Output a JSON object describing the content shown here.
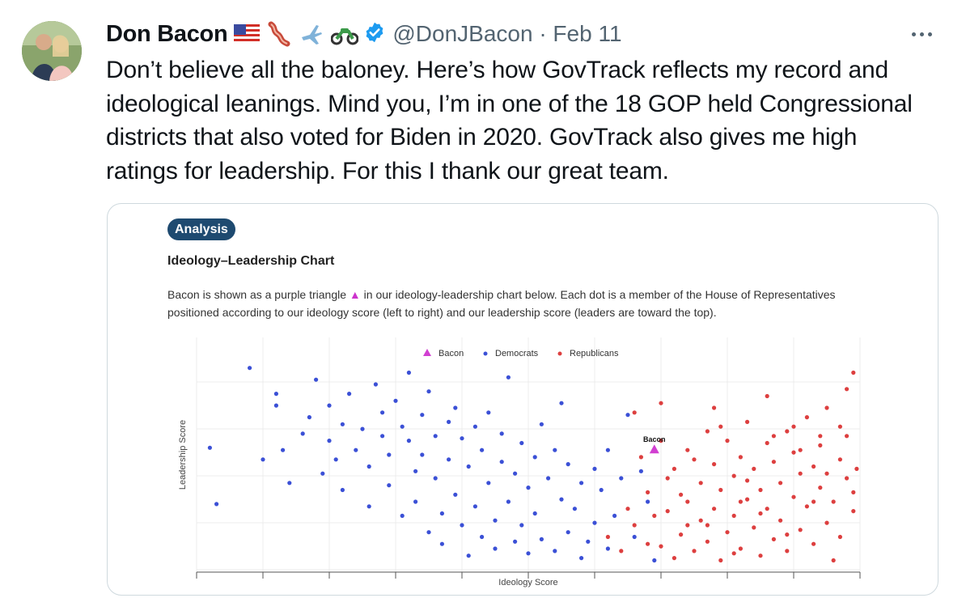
{
  "tweet": {
    "display_name": "Don Bacon",
    "name_emojis": [
      "flag-usa-icon",
      "bacon-icon",
      "airplane-icon",
      "motorcycle-icon"
    ],
    "verified": "verified-badge-icon",
    "handle_date": "@DonJBacon · Feb 11",
    "text": "Don’t believe all the baloney. Here’s how GovTrack reflects my record and\nideological leanings. Mind you, I’m in one of the 18 GOP held Congressional\ndistricts that also voted for Biden in 2020. GovTrack also gives me high\nratings for leadership. For this I thank our great team."
  },
  "card": {
    "badge": "Analysis",
    "title": "Ideology–Leadership Chart",
    "desc_before": "Bacon is shown as a purple triangle ",
    "desc_triangle": "▲",
    "desc_after": " in our ideology-leadership chart below. Each dot is a member of the House of Representatives positioned according to our ideology score (left to right) and our leadership score (leaders are toward the top)."
  },
  "colors": {
    "democrats": "#3b50d6",
    "republicans": "#dd3f3f",
    "bacon": "#d13fd1",
    "accent": "#1d9bf0"
  },
  "chart_data": {
    "type": "scatter",
    "xlabel": "Ideology Score",
    "ylabel": "Leadership Score",
    "xlim": [
      0,
      1
    ],
    "ylim": [
      0,
      1
    ],
    "grid": true,
    "legend": "top-center",
    "legend_labels": {
      "bacon": "Bacon",
      "democrats": "Democrats",
      "republicans": "Republicans"
    },
    "annotation": "Bacon",
    "bacon": {
      "x": 0.69,
      "y": 0.52
    },
    "series": [
      {
        "name": "Democrats",
        "points": [
          [
            0.02,
            0.53
          ],
          [
            0.03,
            0.29
          ],
          [
            0.08,
            0.87
          ],
          [
            0.1,
            0.48
          ],
          [
            0.12,
            0.76
          ],
          [
            0.12,
            0.71
          ],
          [
            0.13,
            0.52
          ],
          [
            0.14,
            0.38
          ],
          [
            0.16,
            0.59
          ],
          [
            0.17,
            0.66
          ],
          [
            0.18,
            0.82
          ],
          [
            0.19,
            0.42
          ],
          [
            0.2,
            0.56
          ],
          [
            0.2,
            0.71
          ],
          [
            0.21,
            0.48
          ],
          [
            0.22,
            0.63
          ],
          [
            0.22,
            0.35
          ],
          [
            0.23,
            0.76
          ],
          [
            0.24,
            0.52
          ],
          [
            0.25,
            0.61
          ],
          [
            0.26,
            0.28
          ],
          [
            0.26,
            0.45
          ],
          [
            0.27,
            0.8
          ],
          [
            0.28,
            0.58
          ],
          [
            0.28,
            0.68
          ],
          [
            0.29,
            0.5
          ],
          [
            0.29,
            0.37
          ],
          [
            0.3,
            0.73
          ],
          [
            0.31,
            0.62
          ],
          [
            0.31,
            0.24
          ],
          [
            0.32,
            0.56
          ],
          [
            0.32,
            0.85
          ],
          [
            0.33,
            0.43
          ],
          [
            0.33,
            0.3
          ],
          [
            0.34,
            0.67
          ],
          [
            0.34,
            0.5
          ],
          [
            0.35,
            0.17
          ],
          [
            0.35,
            0.77
          ],
          [
            0.36,
            0.58
          ],
          [
            0.36,
            0.4
          ],
          [
            0.37,
            0.25
          ],
          [
            0.37,
            0.12
          ],
          [
            0.38,
            0.64
          ],
          [
            0.38,
            0.48
          ],
          [
            0.39,
            0.33
          ],
          [
            0.39,
            0.7
          ],
          [
            0.4,
            0.2
          ],
          [
            0.4,
            0.57
          ],
          [
            0.41,
            0.45
          ],
          [
            0.41,
            0.07
          ],
          [
            0.42,
            0.62
          ],
          [
            0.42,
            0.28
          ],
          [
            0.43,
            0.15
          ],
          [
            0.43,
            0.52
          ],
          [
            0.44,
            0.38
          ],
          [
            0.44,
            0.68
          ],
          [
            0.45,
            0.22
          ],
          [
            0.45,
            0.1
          ],
          [
            0.46,
            0.47
          ],
          [
            0.46,
            0.59
          ],
          [
            0.47,
            0.3
          ],
          [
            0.47,
            0.83
          ],
          [
            0.48,
            0.13
          ],
          [
            0.48,
            0.42
          ],
          [
            0.49,
            0.55
          ],
          [
            0.49,
            0.2
          ],
          [
            0.5,
            0.08
          ],
          [
            0.5,
            0.36
          ],
          [
            0.51,
            0.49
          ],
          [
            0.51,
            0.25
          ],
          [
            0.52,
            0.63
          ],
          [
            0.52,
            0.14
          ],
          [
            0.53,
            0.4
          ],
          [
            0.54,
            0.52
          ],
          [
            0.54,
            0.09
          ],
          [
            0.55,
            0.31
          ],
          [
            0.55,
            0.72
          ],
          [
            0.56,
            0.46
          ],
          [
            0.56,
            0.17
          ],
          [
            0.57,
            0.27
          ],
          [
            0.58,
            0.38
          ],
          [
            0.58,
            0.06
          ],
          [
            0.59,
            0.13
          ],
          [
            0.6,
            0.44
          ],
          [
            0.6,
            0.21
          ],
          [
            0.61,
            0.35
          ],
          [
            0.62,
            0.52
          ],
          [
            0.62,
            0.1
          ],
          [
            0.63,
            0.24
          ],
          [
            0.64,
            0.4
          ],
          [
            0.65,
            0.67
          ],
          [
            0.66,
            0.15
          ],
          [
            0.67,
            0.43
          ],
          [
            0.68,
            0.3
          ],
          [
            0.69,
            0.05
          ]
        ]
      },
      {
        "name": "Republicans",
        "points": [
          [
            0.66,
            0.2
          ],
          [
            0.68,
            0.34
          ],
          [
            0.7,
            0.11
          ],
          [
            0.71,
            0.26
          ],
          [
            0.72,
            0.44
          ],
          [
            0.72,
            0.06
          ],
          [
            0.73,
            0.16
          ],
          [
            0.74,
            0.3
          ],
          [
            0.74,
            0.52
          ],
          [
            0.75,
            0.09
          ],
          [
            0.76,
            0.22
          ],
          [
            0.76,
            0.38
          ],
          [
            0.77,
            0.6
          ],
          [
            0.77,
            0.13
          ],
          [
            0.78,
            0.46
          ],
          [
            0.78,
            0.27
          ],
          [
            0.79,
            0.05
          ],
          [
            0.79,
            0.35
          ],
          [
            0.8,
            0.17
          ],
          [
            0.8,
            0.56
          ],
          [
            0.81,
            0.41
          ],
          [
            0.81,
            0.24
          ],
          [
            0.82,
            0.1
          ],
          [
            0.82,
            0.49
          ],
          [
            0.83,
            0.31
          ],
          [
            0.83,
            0.64
          ],
          [
            0.84,
            0.19
          ],
          [
            0.84,
            0.44
          ],
          [
            0.85,
            0.07
          ],
          [
            0.85,
            0.35
          ],
          [
            0.86,
            0.27
          ],
          [
            0.86,
            0.55
          ],
          [
            0.87,
            0.14
          ],
          [
            0.87,
            0.47
          ],
          [
            0.88,
            0.38
          ],
          [
            0.88,
            0.22
          ],
          [
            0.89,
            0.6
          ],
          [
            0.89,
            0.09
          ],
          [
            0.9,
            0.32
          ],
          [
            0.9,
            0.51
          ],
          [
            0.91,
            0.18
          ],
          [
            0.91,
            0.42
          ],
          [
            0.92,
            0.28
          ],
          [
            0.92,
            0.66
          ],
          [
            0.93,
            0.12
          ],
          [
            0.93,
            0.45
          ],
          [
            0.94,
            0.36
          ],
          [
            0.94,
            0.54
          ],
          [
            0.95,
            0.21
          ],
          [
            0.95,
            0.7
          ],
          [
            0.96,
            0.3
          ],
          [
            0.96,
            0.05
          ],
          [
            0.97,
            0.48
          ],
          [
            0.97,
            0.15
          ],
          [
            0.98,
            0.4
          ],
          [
            0.98,
            0.58
          ],
          [
            0.99,
            0.26
          ],
          [
            0.99,
            0.85
          ],
          [
            0.995,
            0.44
          ],
          [
            0.62,
            0.15
          ],
          [
            0.64,
            0.09
          ],
          [
            0.65,
            0.27
          ],
          [
            0.67,
            0.49
          ],
          [
            0.68,
            0.12
          ],
          [
            0.69,
            0.24
          ],
          [
            0.7,
            0.56
          ],
          [
            0.71,
            0.4
          ],
          [
            0.73,
            0.33
          ],
          [
            0.75,
            0.48
          ],
          [
            0.77,
            0.2
          ],
          [
            0.79,
            0.62
          ],
          [
            0.81,
            0.08
          ],
          [
            0.83,
            0.39
          ],
          [
            0.85,
            0.25
          ],
          [
            0.87,
            0.58
          ],
          [
            0.89,
            0.16
          ],
          [
            0.91,
            0.52
          ],
          [
            0.93,
            0.3
          ],
          [
            0.95,
            0.42
          ],
          [
            0.97,
            0.62
          ],
          [
            0.99,
            0.34
          ],
          [
            0.66,
            0.68
          ],
          [
            0.7,
            0.72
          ],
          [
            0.74,
            0.2
          ],
          [
            0.78,
            0.7
          ],
          [
            0.82,
            0.3
          ],
          [
            0.86,
            0.75
          ],
          [
            0.9,
            0.62
          ],
          [
            0.94,
            0.58
          ],
          [
            0.98,
            0.78
          ]
        ]
      }
    ]
  }
}
